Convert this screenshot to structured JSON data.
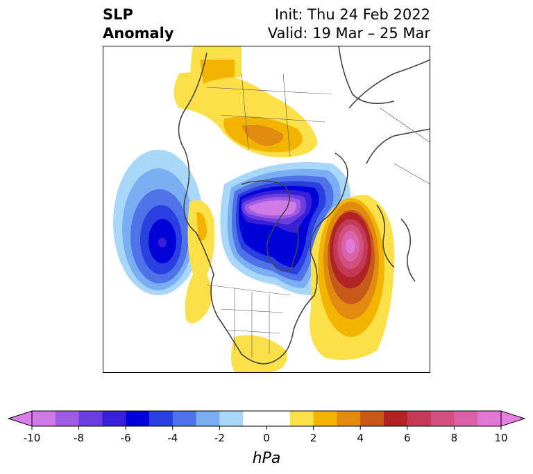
{
  "title": {
    "left_line1": "SLP",
    "left_line2": "Anomaly",
    "init": "Init: Thu 24 Feb 2022",
    "valid": "Valid: 19 Mar – 25 Mar"
  },
  "map": {
    "projection": "polar stereographic (North America / North Atlantic)",
    "features": [
      {
        "name": "Gulf of Alaska low",
        "sign": "negative",
        "min": -7
      },
      {
        "name": "Hudson Bay / Canadian low",
        "sign": "negative",
        "min": -10
      },
      {
        "name": "North Atlantic high",
        "sign": "positive",
        "max": 9
      },
      {
        "name": "Eurasian Arctic high",
        "sign": "positive",
        "max": 4
      },
      {
        "name": "Western US ridge",
        "sign": "positive",
        "max": 2
      },
      {
        "name": "Southeast US ridge",
        "sign": "positive",
        "max": 2
      }
    ]
  },
  "colorbar": {
    "unit": "hPa",
    "ticks": [
      "-10",
      "-8",
      "-6",
      "-4",
      "-2",
      "0",
      "2",
      "4",
      "6",
      "8",
      "10"
    ],
    "range": [
      -10,
      10
    ],
    "extend": "both",
    "colors": [
      "#d07ae8",
      "#9f5be2",
      "#6b3ee0",
      "#3a1fd8",
      "#0000d8",
      "#2a3fdf",
      "#4f72e8",
      "#7aaef2",
      "#a9d7fa",
      "#ffffff",
      "#ffffff",
      "#fbe04a",
      "#f3b400",
      "#e08b10",
      "#c75a1a",
      "#b22325",
      "#c23a55",
      "#d05080",
      "#d963aa",
      "#e278d6"
    ],
    "under_color": "#d87fe8",
    "over_color": "#e57ee0"
  }
}
